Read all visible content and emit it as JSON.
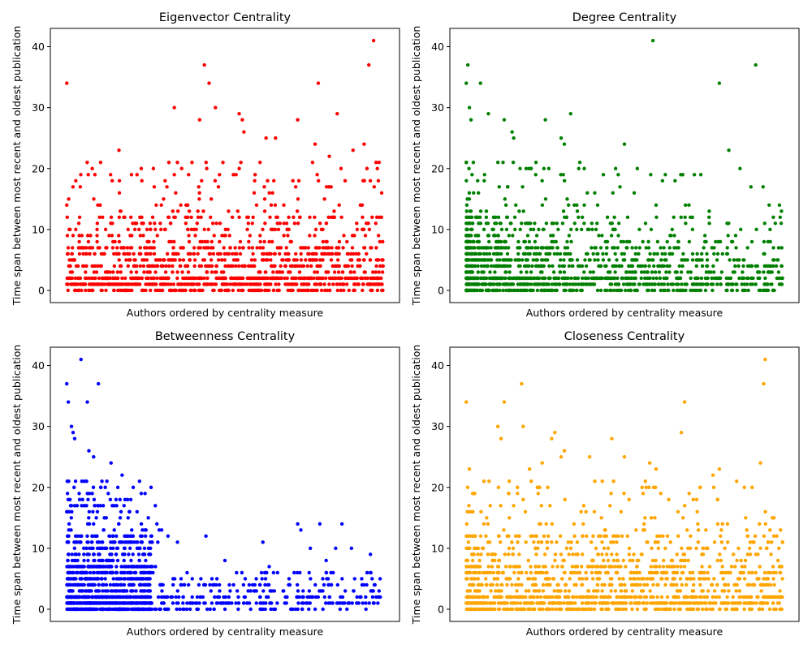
{
  "chart_data": [
    {
      "type": "scatter",
      "title": "Eigenvector Centrality",
      "xlabel": "Authors ordered by centrality measure",
      "ylabel": "Time span between most recent and oldest publication",
      "ylim": [
        -2,
        43
      ],
      "yticks": [
        0,
        10,
        20,
        30,
        40
      ],
      "xticks": [],
      "grid": false,
      "color": "#ff0000",
      "n_points": 1400,
      "density_profile": "uniform",
      "outliers": [
        {
          "x": 0.0,
          "y": 34
        },
        {
          "x": 0.165,
          "y": 23
        },
        {
          "x": 0.34,
          "y": 30
        },
        {
          "x": 0.42,
          "y": 28
        },
        {
          "x": 0.435,
          "y": 37
        },
        {
          "x": 0.45,
          "y": 34
        },
        {
          "x": 0.47,
          "y": 30
        },
        {
          "x": 0.545,
          "y": 29
        },
        {
          "x": 0.555,
          "y": 28
        },
        {
          "x": 0.56,
          "y": 26
        },
        {
          "x": 0.63,
          "y": 25
        },
        {
          "x": 0.66,
          "y": 25
        },
        {
          "x": 0.73,
          "y": 28
        },
        {
          "x": 0.785,
          "y": 24
        },
        {
          "x": 0.795,
          "y": 34
        },
        {
          "x": 0.83,
          "y": 22
        },
        {
          "x": 0.855,
          "y": 29
        },
        {
          "x": 0.88,
          "y": 18
        },
        {
          "x": 0.905,
          "y": 23
        },
        {
          "x": 0.94,
          "y": 24
        },
        {
          "x": 0.955,
          "y": 37
        },
        {
          "x": 0.97,
          "y": 41
        },
        {
          "x": 0.985,
          "y": 18
        },
        {
          "x": 0.995,
          "y": 12
        }
      ]
    },
    {
      "type": "scatter",
      "title": "Degree Centrality",
      "xlabel": "Authors ordered by centrality measure",
      "ylabel": "Time span between most recent and oldest publication",
      "ylim": [
        -2,
        43
      ],
      "yticks": [
        0,
        10,
        20,
        30,
        40
      ],
      "xticks": [],
      "grid": false,
      "color": "#008000",
      "n_points": 1400,
      "density_profile": "decreasing",
      "outliers": [
        {
          "x": 0.0,
          "y": 34
        },
        {
          "x": 0.005,
          "y": 37
        },
        {
          "x": 0.01,
          "y": 30
        },
        {
          "x": 0.015,
          "y": 28
        },
        {
          "x": 0.045,
          "y": 34
        },
        {
          "x": 0.07,
          "y": 29
        },
        {
          "x": 0.12,
          "y": 28
        },
        {
          "x": 0.145,
          "y": 26
        },
        {
          "x": 0.15,
          "y": 25
        },
        {
          "x": 0.25,
          "y": 28
        },
        {
          "x": 0.3,
          "y": 25
        },
        {
          "x": 0.31,
          "y": 24
        },
        {
          "x": 0.33,
          "y": 29
        },
        {
          "x": 0.5,
          "y": 24
        },
        {
          "x": 0.59,
          "y": 41
        },
        {
          "x": 0.66,
          "y": 18
        },
        {
          "x": 0.8,
          "y": 34
        },
        {
          "x": 0.83,
          "y": 23
        },
        {
          "x": 0.9,
          "y": 17
        },
        {
          "x": 0.915,
          "y": 37
        },
        {
          "x": 0.99,
          "y": 14
        }
      ]
    },
    {
      "type": "scatter",
      "title": "Betweenness Centrality",
      "xlabel": "Authors ordered by centrality measure",
      "ylabel": "Time span between most recent and oldest publication",
      "ylim": [
        -2,
        43
      ],
      "yticks": [
        0,
        10,
        20,
        30,
        40
      ],
      "xticks": [],
      "grid": false,
      "color": "#0000ff",
      "n_points": 1400,
      "density_profile": "front_loaded",
      "outliers": [
        {
          "x": 0.0,
          "y": 37
        },
        {
          "x": 0.005,
          "y": 34
        },
        {
          "x": 0.015,
          "y": 30
        },
        {
          "x": 0.02,
          "y": 29
        },
        {
          "x": 0.025,
          "y": 28
        },
        {
          "x": 0.045,
          "y": 41
        },
        {
          "x": 0.1,
          "y": 37
        },
        {
          "x": 0.065,
          "y": 34
        },
        {
          "x": 0.07,
          "y": 26
        },
        {
          "x": 0.085,
          "y": 25
        },
        {
          "x": 0.14,
          "y": 24
        },
        {
          "x": 0.175,
          "y": 22
        },
        {
          "x": 0.23,
          "y": 21
        },
        {
          "x": 0.28,
          "y": 17
        },
        {
          "x": 0.285,
          "y": 14
        },
        {
          "x": 0.3,
          "y": 13
        },
        {
          "x": 0.32,
          "y": 12
        },
        {
          "x": 0.35,
          "y": 11
        },
        {
          "x": 0.44,
          "y": 12
        },
        {
          "x": 0.5,
          "y": 8
        },
        {
          "x": 0.62,
          "y": 11
        },
        {
          "x": 0.64,
          "y": 7
        },
        {
          "x": 0.73,
          "y": 14
        },
        {
          "x": 0.74,
          "y": 13
        },
        {
          "x": 0.77,
          "y": 10
        },
        {
          "x": 0.8,
          "y": 14
        },
        {
          "x": 0.82,
          "y": 8
        },
        {
          "x": 0.85,
          "y": 10
        },
        {
          "x": 0.87,
          "y": 14
        },
        {
          "x": 0.9,
          "y": 10
        },
        {
          "x": 0.96,
          "y": 9
        }
      ]
    },
    {
      "type": "scatter",
      "title": "Closeness Centrality",
      "xlabel": "Authors ordered by centrality measure",
      "ylabel": "Time span between most recent and oldest publication",
      "ylim": [
        -2,
        43
      ],
      "yticks": [
        0,
        10,
        20,
        30,
        40
      ],
      "xticks": [],
      "grid": false,
      "color": "#ffa500",
      "n_points": 1400,
      "density_profile": "mild_decreasing",
      "outliers": [
        {
          "x": 0.0,
          "y": 34
        },
        {
          "x": 0.01,
          "y": 23
        },
        {
          "x": 0.1,
          "y": 30
        },
        {
          "x": 0.11,
          "y": 28
        },
        {
          "x": 0.12,
          "y": 34
        },
        {
          "x": 0.175,
          "y": 37
        },
        {
          "x": 0.18,
          "y": 30
        },
        {
          "x": 0.2,
          "y": 23
        },
        {
          "x": 0.24,
          "y": 24
        },
        {
          "x": 0.27,
          "y": 28
        },
        {
          "x": 0.28,
          "y": 29
        },
        {
          "x": 0.3,
          "y": 25
        },
        {
          "x": 0.31,
          "y": 26
        },
        {
          "x": 0.39,
          "y": 25
        },
        {
          "x": 0.43,
          "y": 21
        },
        {
          "x": 0.46,
          "y": 28
        },
        {
          "x": 0.5,
          "y": 25
        },
        {
          "x": 0.58,
          "y": 24
        },
        {
          "x": 0.6,
          "y": 23
        },
        {
          "x": 0.64,
          "y": 18
        },
        {
          "x": 0.68,
          "y": 29
        },
        {
          "x": 0.69,
          "y": 34
        },
        {
          "x": 0.78,
          "y": 22
        },
        {
          "x": 0.8,
          "y": 23
        },
        {
          "x": 0.93,
          "y": 24
        },
        {
          "x": 0.945,
          "y": 41
        },
        {
          "x": 0.94,
          "y": 37
        },
        {
          "x": 0.96,
          "y": 13
        },
        {
          "x": 0.99,
          "y": 7
        }
      ]
    }
  ]
}
